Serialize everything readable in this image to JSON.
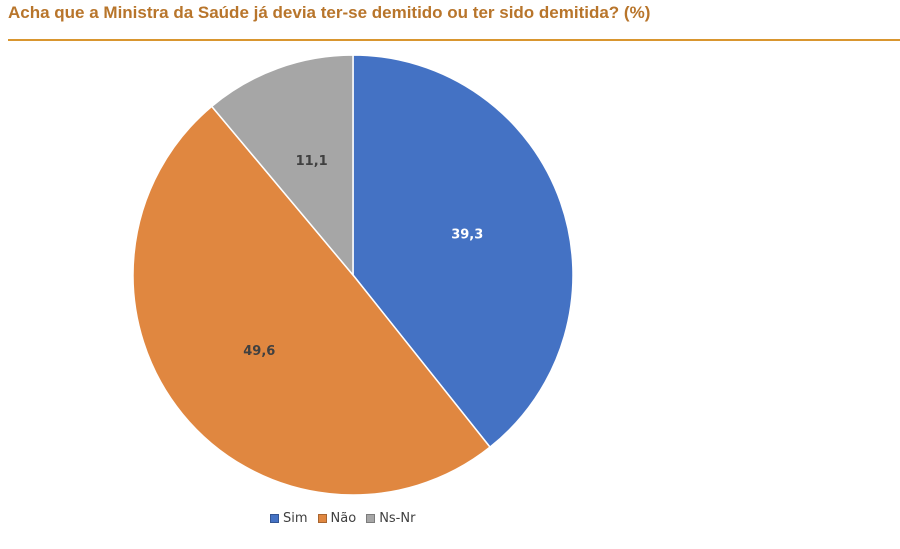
{
  "chart_data": {
    "type": "pie",
    "title": "Acha que a Ministra da Saúde já devia ter-se demitido ou ter sido demitida? (%)",
    "categories": [
      "Sim",
      "Não",
      "Ns-Nr"
    ],
    "values": [
      39.3,
      49.6,
      11.1
    ],
    "value_labels": [
      "39,3",
      "49,6",
      "11,1"
    ],
    "colors": [
      "#4472c4",
      "#e08740",
      "#a6a6a6"
    ],
    "label_colors": [
      "#ffffff",
      "#404040",
      "#404040"
    ],
    "legend": "bottom",
    "start": "top",
    "direction": "clockwise"
  }
}
